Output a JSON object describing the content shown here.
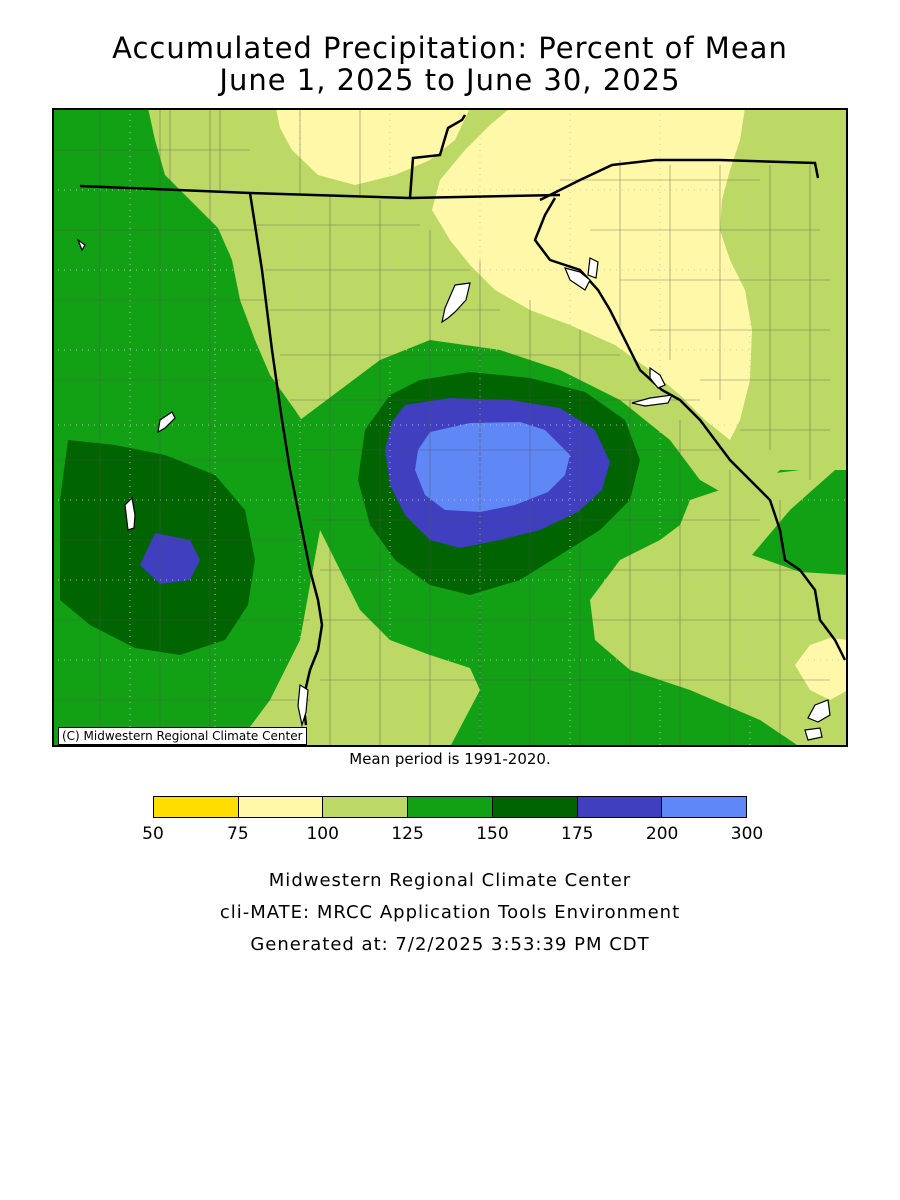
{
  "title": {
    "line1": "Accumulated Precipitation: Percent of Mean",
    "line2": "June 1, 2025 to June 30, 2025"
  },
  "map": {
    "credit": "(C) Midwestern Regional Climate Center",
    "mean_note": "Mean period is 1991-2020.",
    "zone_colors": {
      "50-75": "#ffdd00",
      "75-100": "#fff8a8",
      "100-125": "#bcd865",
      "125-150": "#12a014",
      "150-175": "#006400",
      "175-200": "#3f3fbf",
      "200-300": "#5f87f5"
    },
    "water_color": "#ffffff",
    "boundary_color": "#000000"
  },
  "legend": {
    "colors": [
      "#ffdd00",
      "#fff8a8",
      "#bcd865",
      "#12a014",
      "#006400",
      "#3f3fbf",
      "#5f87f5"
    ],
    "labels": [
      "50",
      "75",
      "100",
      "125",
      "150",
      "175",
      "200",
      "300"
    ]
  },
  "footer": {
    "line1": "Midwestern Regional Climate Center",
    "line2": "cli-MATE: MRCC Application Tools Environment",
    "line3": "Generated at: 7/2/2025 3:53:39 PM CDT"
  }
}
